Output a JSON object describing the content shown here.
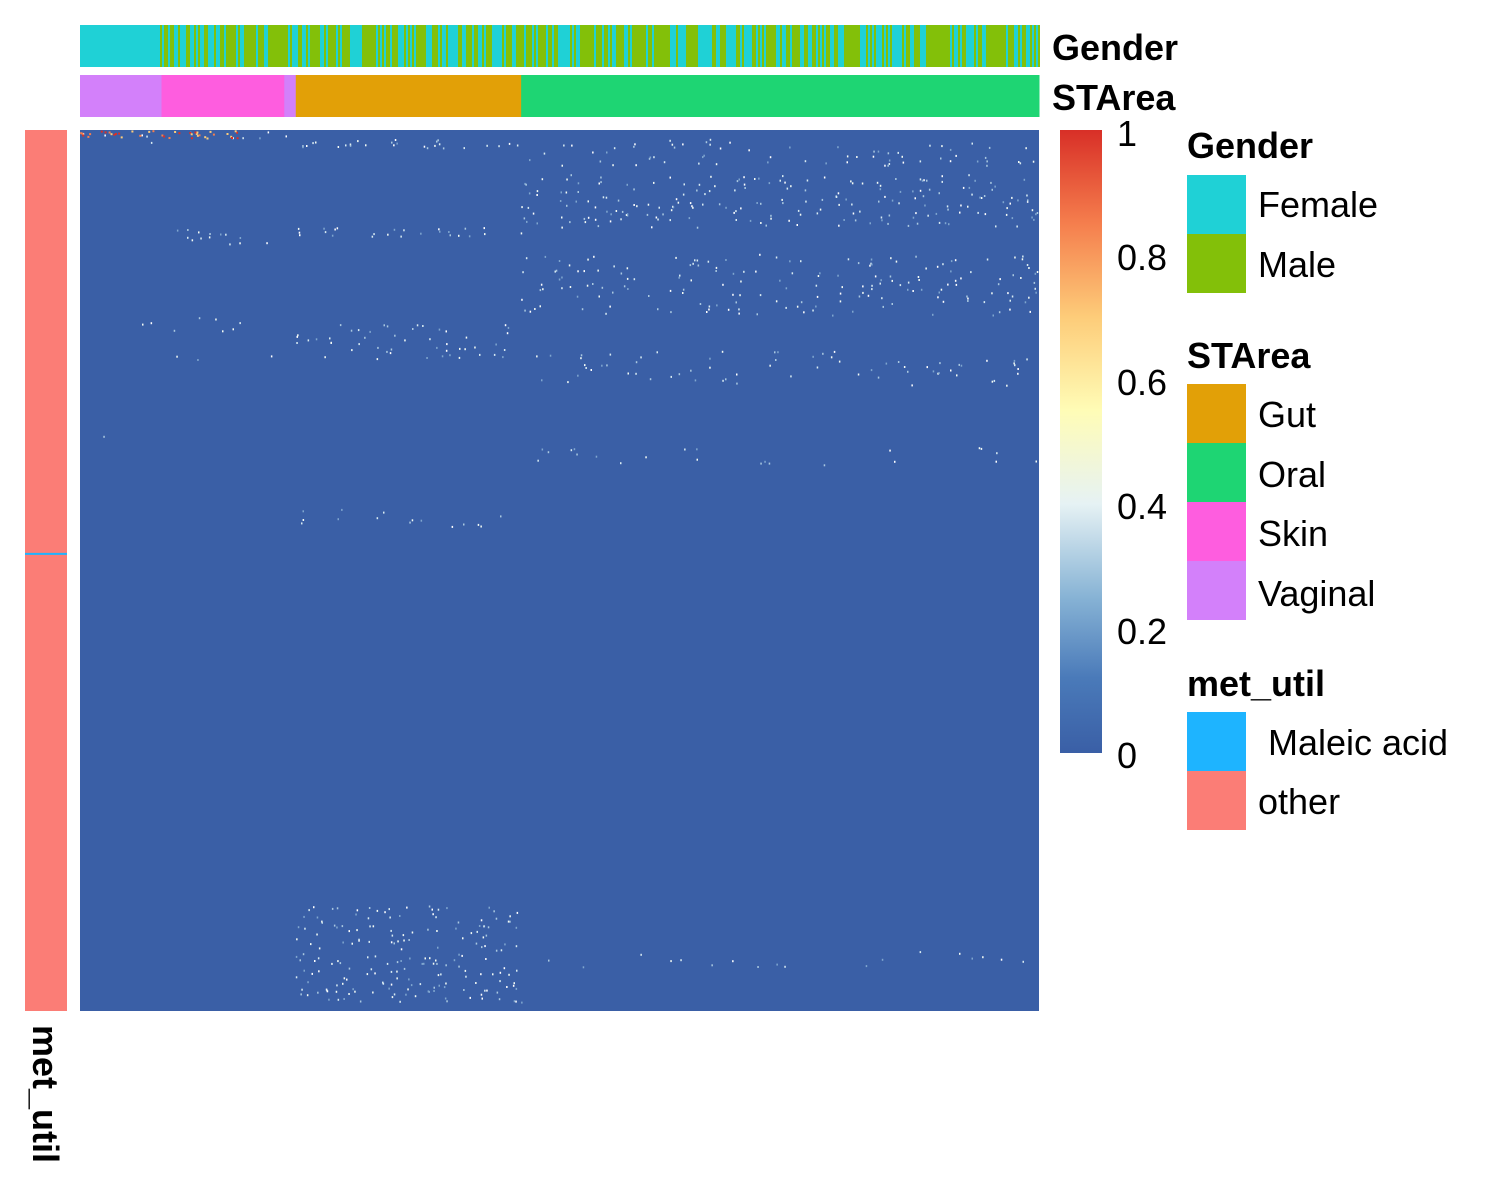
{
  "chart_data": {
    "type": "heatmap",
    "title": "",
    "xlabel": "",
    "ylabel": "",
    "color_scale": {
      "min": 0,
      "max": 1,
      "ticks": [
        "1",
        "0.8",
        "0.6",
        "0.4",
        "0.2",
        "0"
      ],
      "colors": [
        "#3a5fa6",
        "#4a7ab9",
        "#87b3d5",
        "#e6f2f4",
        "#fffcb6",
        "#fdcc79",
        "#f57e4d",
        "#d82f27"
      ]
    },
    "column_annotations": [
      {
        "name": "Gender",
        "levels": [
          {
            "label": "Female",
            "color": "#1fd1d6"
          },
          {
            "label": "Male",
            "color": "#83c009"
          }
        ]
      },
      {
        "name": "STArea",
        "levels": [
          {
            "label": "Gut",
            "color": "#e2a007"
          },
          {
            "label": "Oral",
            "color": "#1ed573"
          },
          {
            "label": "Skin",
            "color": "#fe5ddf"
          },
          {
            "label": "Vaginal",
            "color": "#d380fa"
          }
        ],
        "column_order": [
          "Vaginal",
          "Skin",
          "Vaginal",
          "Gut",
          "Oral"
        ],
        "column_fractions": [
          0.085,
          0.128,
          0.012,
          0.235,
          0.54
        ]
      }
    ],
    "row_annotations": [
      {
        "name": "met_util",
        "levels": [
          {
            "label": " Maleic acid",
            "color": "#1eb4ff"
          },
          {
            "label": "other",
            "color": "#fb7d76"
          }
        ],
        "maleic_acid_row_fraction": 0.48
      }
    ],
    "value_summary": "mostly 0 (dark blue) with sparse high values",
    "legend_placement": "right"
  }
}
